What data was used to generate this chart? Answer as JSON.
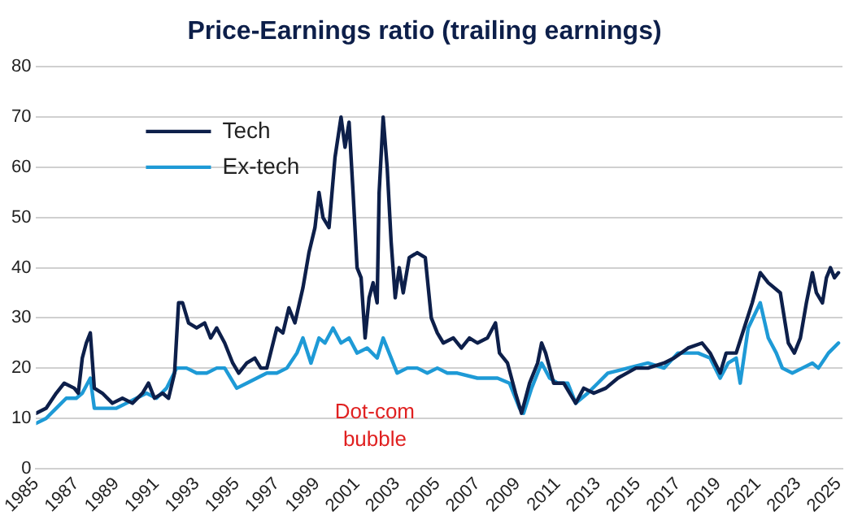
{
  "chart_data": {
    "type": "line",
    "title": "Price-Earnings ratio (trailing earnings)",
    "xlim": [
      1985,
      2025.2
    ],
    "xticks": [
      1985,
      1987,
      1989,
      1991,
      1993,
      1995,
      1997,
      1999,
      2001,
      2003,
      2005,
      2007,
      2009,
      2011,
      2013,
      2015,
      2017,
      2019,
      2021,
      2023,
      2025
    ],
    "ylim": [
      0,
      80
    ],
    "yticks": [
      0,
      10,
      20,
      30,
      40,
      50,
      60,
      70,
      80
    ],
    "grid": "y",
    "legend": "top left",
    "marker": "none",
    "line_style": "solid",
    "annotations": [
      "Dot-com bubble"
    ],
    "series": [
      {
        "name": "Tech",
        "color": "#0d1f4a",
        "x": [
          1985,
          1985.5,
          1986,
          1986.4,
          1986.9,
          1987.1,
          1987.3,
          1987.5,
          1987.7,
          1987.9,
          1988.3,
          1988.8,
          1989.3,
          1989.8,
          1990.3,
          1990.6,
          1990.9,
          1991.3,
          1991.6,
          1991.9,
          1992.1,
          1992.3,
          1992.6,
          1993,
          1993.4,
          1993.7,
          1994,
          1994.4,
          1994.8,
          1995.1,
          1995.5,
          1995.9,
          1996.2,
          1996.5,
          1997,
          1997.3,
          1997.6,
          1997.9,
          1998.3,
          1998.6,
          1998.9,
          1999.1,
          1999.3,
          1999.6,
          1999.9,
          2000.2,
          2000.4,
          2000.6,
          2000.8,
          2001,
          2001.2,
          2001.4,
          2001.6,
          2001.8,
          2002,
          2002.1,
          2002.3,
          2002.5,
          2002.7,
          2002.9,
          2003.1,
          2003.3,
          2003.6,
          2004,
          2004.4,
          2004.7,
          2005,
          2005.3,
          2005.8,
          2006.2,
          2006.6,
          2007,
          2007.5,
          2007.9,
          2008.1,
          2008.5,
          2008.9,
          2009.2,
          2009.6,
          2010,
          2010.2,
          2010.4,
          2010.8,
          2011.3,
          2011.9,
          2012.3,
          2012.8,
          2013.4,
          2014,
          2014.9,
          2015.5,
          2016.3,
          2016.8,
          2017.5,
          2018.2,
          2018.6,
          2019.1,
          2019.4,
          2019.9,
          2020.3,
          2020.7,
          2021.1,
          2021.5,
          2022.1,
          2022.5,
          2022.8,
          2023.1,
          2023.4,
          2023.7,
          2023.9,
          2024.2,
          2024.4,
          2024.6,
          2024.8,
          2025
        ],
        "values": [
          11,
          12,
          15,
          17,
          16,
          15,
          22,
          25,
          27,
          16,
          15,
          13,
          14,
          13,
          15,
          17,
          14,
          15,
          14,
          19,
          33,
          33,
          29,
          28,
          29,
          26,
          28,
          25,
          21,
          19,
          21,
          22,
          20,
          20,
          28,
          27,
          32,
          29,
          36,
          43,
          48,
          55,
          50,
          48,
          62,
          70,
          64,
          69,
          55,
          40,
          38,
          26,
          34,
          37,
          33,
          55,
          70,
          60,
          45,
          34,
          40,
          35,
          42,
          43,
          42,
          30,
          27,
          25,
          26,
          24,
          26,
          25,
          26,
          29,
          23,
          21,
          15,
          11,
          17,
          21,
          25,
          23,
          17,
          17,
          13,
          16,
          15,
          16,
          18,
          20,
          20,
          21,
          22,
          24,
          25,
          23,
          19,
          23,
          23,
          28,
          33,
          39,
          37,
          35,
          25,
          23,
          26,
          33,
          39,
          35,
          33,
          38,
          40,
          38,
          39
        ]
      },
      {
        "name": "Ex-tech",
        "color": "#1e9ad6",
        "x": [
          1985,
          1985.5,
          1986,
          1986.5,
          1987,
          1987.3,
          1987.7,
          1987.9,
          1988.5,
          1989,
          1989.5,
          1990,
          1990.5,
          1991,
          1991.5,
          1992,
          1992.5,
          1993,
          1993.5,
          1994,
          1994.4,
          1995,
          1995.5,
          1996,
          1996.5,
          1997,
          1997.5,
          1998,
          1998.3,
          1998.7,
          1999.1,
          1999.4,
          1999.8,
          2000.2,
          2000.6,
          2001,
          2001.5,
          2002,
          2002.3,
          2002.6,
          2003,
          2003.5,
          2004,
          2004.5,
          2005,
          2005.5,
          2006,
          2007,
          2008,
          2008.6,
          2009.1,
          2009.3,
          2009.7,
          2010.2,
          2010.6,
          2011,
          2011.5,
          2011.9,
          2012.5,
          2013,
          2013.5,
          2014.5,
          2015.5,
          2016.3,
          2017,
          2018,
          2018.6,
          2019.1,
          2019.5,
          2019.9,
          2020.1,
          2020.5,
          2021.1,
          2021.5,
          2021.9,
          2022.2,
          2022.7,
          2023.2,
          2023.7,
          2024,
          2024.5,
          2025
        ],
        "values": [
          9,
          10,
          12,
          14,
          14,
          15,
          18,
          12,
          12,
          12,
          13,
          14,
          15,
          14,
          16,
          20,
          20,
          19,
          19,
          20,
          20,
          16,
          17,
          18,
          19,
          19,
          20,
          23,
          26,
          21,
          26,
          25,
          28,
          25,
          26,
          23,
          24,
          22,
          26,
          23,
          19,
          20,
          20,
          19,
          20,
          19,
          19,
          18,
          18,
          17,
          12,
          11,
          16,
          21,
          18,
          17,
          17,
          13,
          15,
          17,
          19,
          20,
          21,
          20,
          23,
          23,
          22,
          18,
          21,
          22,
          17,
          28,
          33,
          26,
          23,
          20,
          19,
          20,
          21,
          20,
          23,
          25
        ]
      }
    ]
  }
}
